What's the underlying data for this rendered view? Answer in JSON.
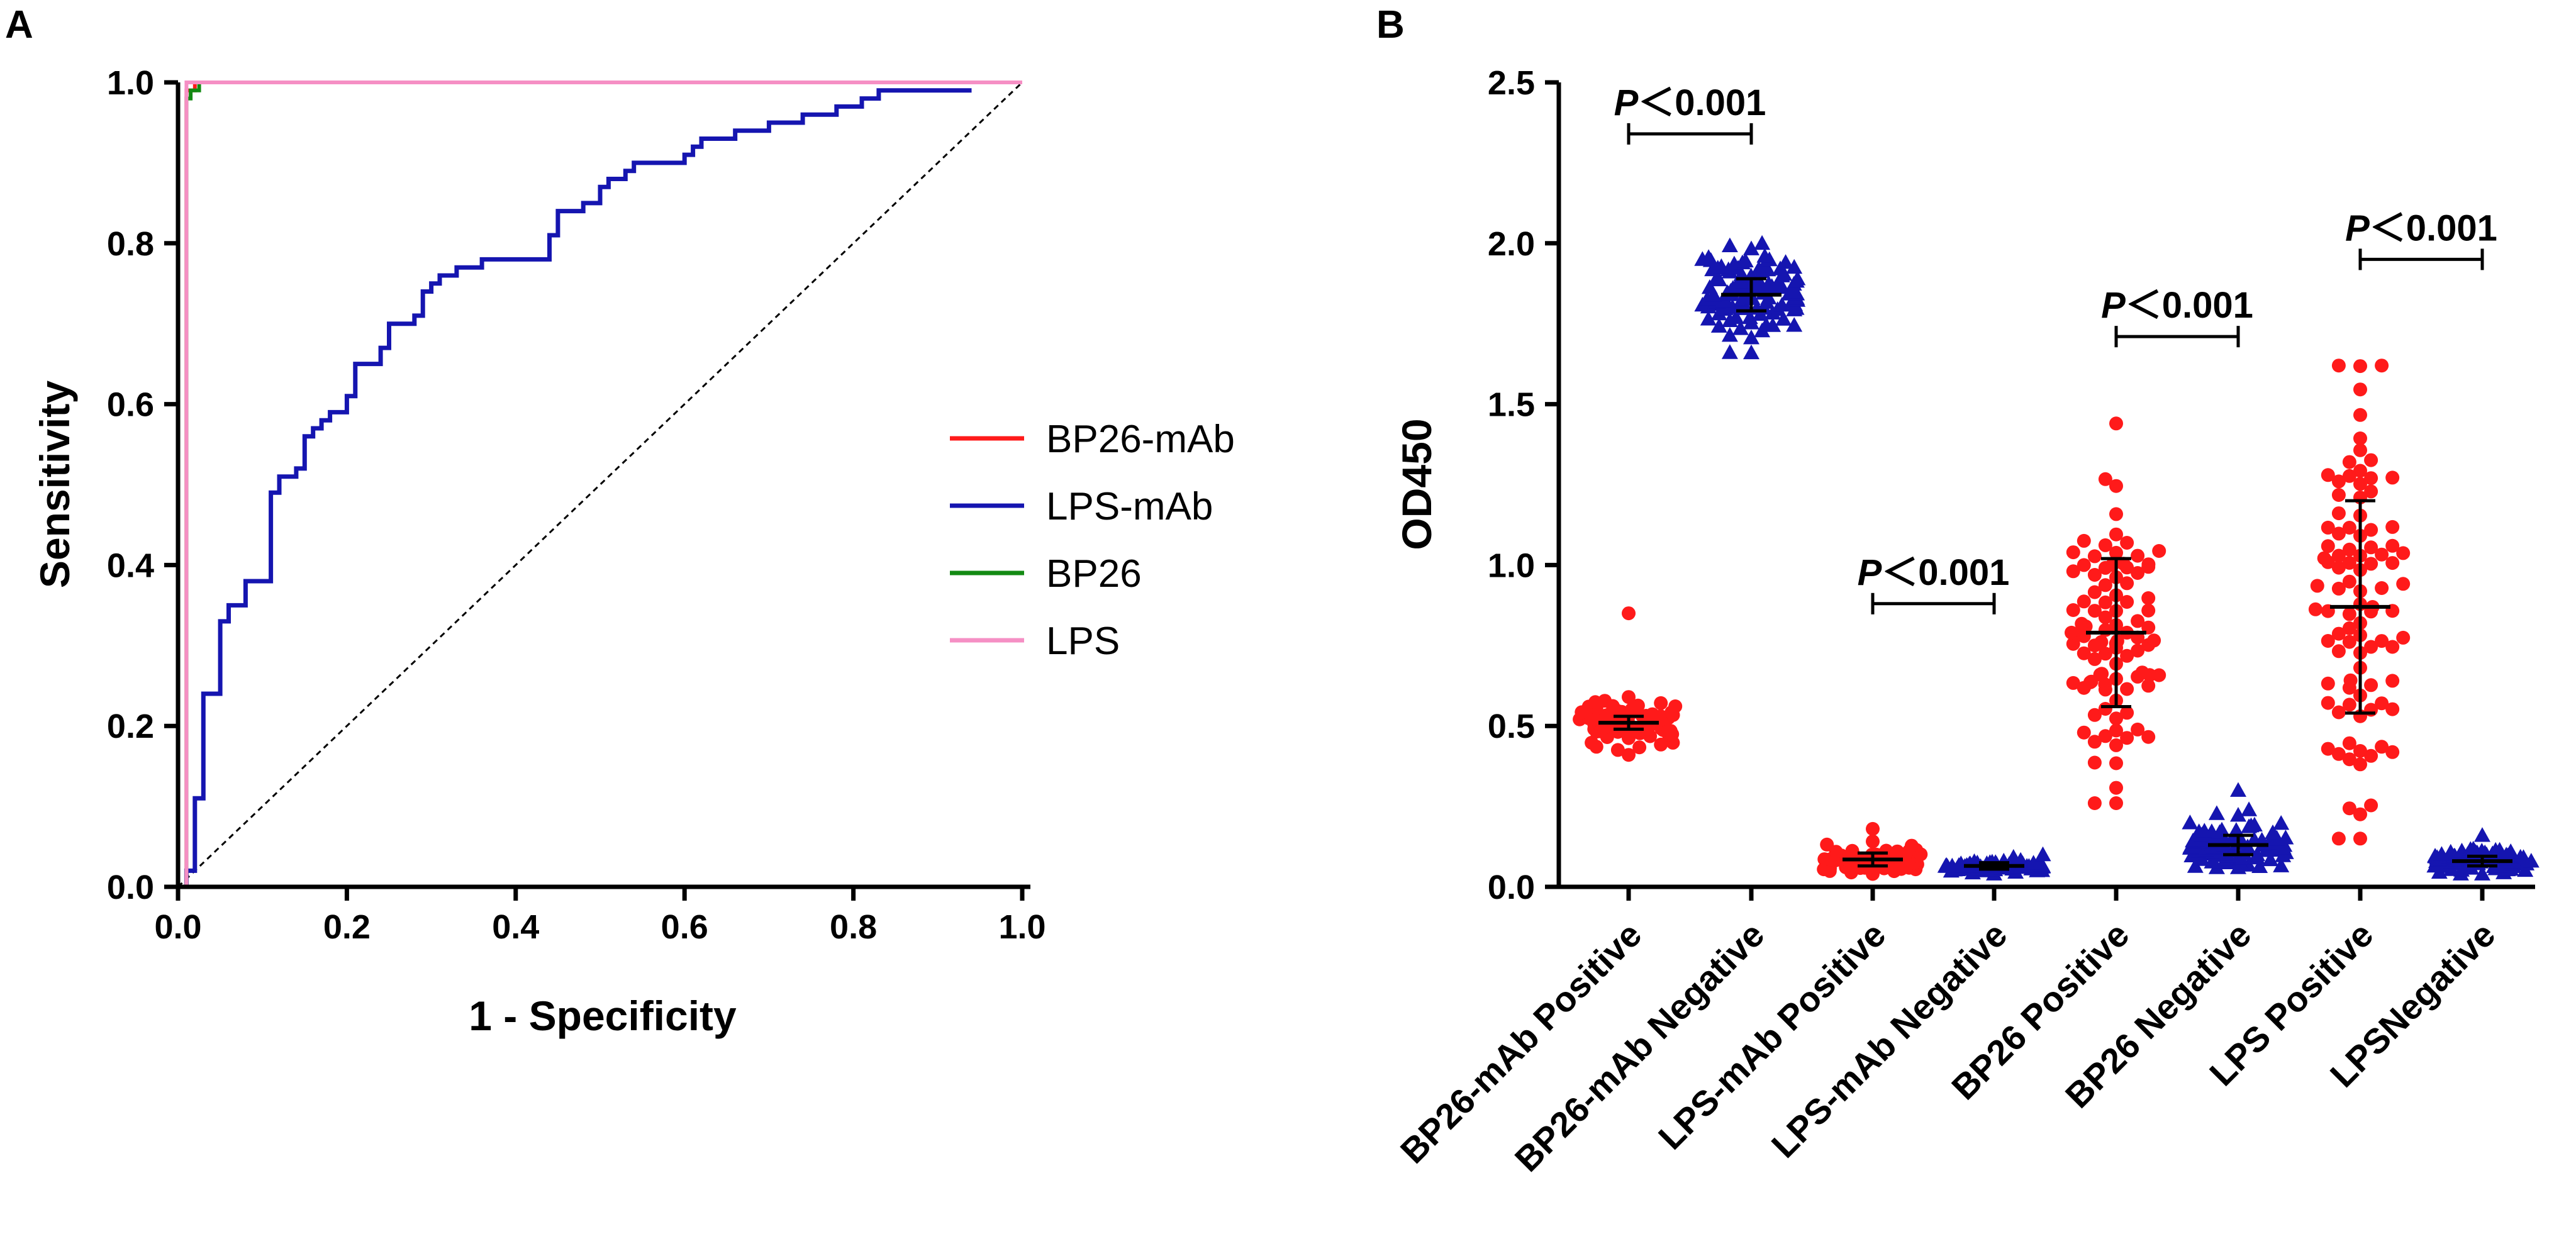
{
  "figure": {
    "panel_a_letter": "A",
    "panel_b_letter": "B"
  },
  "chart_data": [
    {
      "type": "line",
      "panel": "A",
      "title": "",
      "xlabel": "1 - Specificity",
      "ylabel": "Sensitivity",
      "xlim": [
        0,
        1
      ],
      "ylim": [
        0,
        1
      ],
      "xticks": [
        "0.0",
        "0.2",
        "0.4",
        "0.6",
        "0.8",
        "1.0"
      ],
      "yticks": [
        "0.0",
        "0.2",
        "0.4",
        "0.6",
        "0.8",
        "1.0"
      ],
      "legend_position": "right",
      "reference_line": {
        "style": "dashed",
        "color": "#000000",
        "x": [
          0,
          1
        ],
        "y": [
          0,
          1
        ]
      },
      "series": [
        {
          "name": "BP26-mAb",
          "color": "#ff1a1a",
          "x": [
            0.01,
            0.01,
            0.02,
            1.0
          ],
          "y": [
            0.0,
            0.99,
            1.0,
            1.0
          ]
        },
        {
          "name": "LPS-mAb",
          "color": "#1515b0",
          "x": [
            0.01,
            0.01,
            0.02,
            0.02,
            0.03,
            0.03,
            0.045,
            0.05,
            0.05,
            0.06,
            0.06,
            0.08,
            0.08,
            0.11,
            0.11,
            0.12,
            0.12,
            0.14,
            0.15,
            0.16,
            0.17,
            0.17,
            0.18,
            0.19,
            0.2,
            0.21,
            0.21,
            0.23,
            0.24,
            0.25,
            0.25,
            0.28,
            0.29,
            0.29,
            0.3,
            0.31,
            0.32,
            0.33,
            0.35,
            0.36,
            0.37,
            0.38,
            0.42,
            0.44,
            0.44,
            0.45,
            0.45,
            0.47,
            0.48,
            0.49,
            0.5,
            0.51,
            0.52,
            0.53,
            0.54,
            0.56,
            0.57,
            0.58,
            0.6,
            0.61,
            0.62,
            0.63,
            0.66,
            0.67,
            0.7,
            0.72,
            0.74,
            0.77,
            0.78,
            0.8,
            0.81,
            0.82,
            0.83,
            0.85,
            0.86,
            0.94
          ],
          "y": [
            0.0,
            0.02,
            0.1,
            0.11,
            0.23,
            0.24,
            0.24,
            0.25,
            0.33,
            0.35,
            0.35,
            0.36,
            0.38,
            0.38,
            0.49,
            0.5,
            0.51,
            0.52,
            0.56,
            0.57,
            0.58,
            0.58,
            0.59,
            0.59,
            0.61,
            0.64,
            0.65,
            0.65,
            0.67,
            0.68,
            0.7,
            0.71,
            0.73,
            0.74,
            0.75,
            0.76,
            0.76,
            0.77,
            0.77,
            0.78,
            0.78,
            0.78,
            0.78,
            0.79,
            0.81,
            0.83,
            0.84,
            0.84,
            0.85,
            0.85,
            0.87,
            0.88,
            0.88,
            0.89,
            0.9,
            0.9,
            0.9,
            0.9,
            0.91,
            0.92,
            0.93,
            0.93,
            0.94,
            0.94,
            0.95,
            0.95,
            0.96,
            0.96,
            0.97,
            0.97,
            0.98,
            0.98,
            0.99,
            0.99,
            0.99,
            0.99
          ]
        },
        {
          "name": "BP26",
          "color": "#138a13",
          "x": [
            0.01,
            0.01,
            0.015,
            0.02,
            0.025,
            1.0
          ],
          "y": [
            0.0,
            0.98,
            0.99,
            0.99,
            1.0,
            1.0
          ]
        },
        {
          "name": "LPS",
          "color": "#f58fc4",
          "x": [
            0.01,
            0.01,
            1.0
          ],
          "y": [
            0.0,
            1.0,
            1.0
          ]
        }
      ]
    },
    {
      "type": "scatter",
      "panel": "B",
      "title": "",
      "xlabel": "",
      "ylabel": "OD450",
      "ylim": [
        0,
        2.5
      ],
      "yticks": [
        "0.0",
        "0.5",
        "1.0",
        "1.5",
        "2.0",
        "2.5"
      ],
      "categories": [
        "BP26-mAb Positive",
        "BP26-mAb Negative",
        "LPS-mAb Positive",
        "LPS-mAb Negative",
        "BP26 Positive",
        "BP26 Negative",
        "LPS Positive",
        "LPSNegative"
      ],
      "groups": [
        {
          "category": "BP26-mAb Positive",
          "marker": "circle",
          "color": "#ff1a1a",
          "n": 90,
          "mean": 0.51,
          "sd": 0.035,
          "min": 0.41,
          "max": 0.59,
          "outlier": 0.85,
          "error_sd": 0.02
        },
        {
          "category": "BP26-mAb Negative",
          "marker": "triangle",
          "color": "#1515b0",
          "n": 110,
          "mean": 1.84,
          "sd": 0.06,
          "min": 1.66,
          "max": 2.0,
          "error_sd": 0.05
        },
        {
          "category": "LPS-mAb Positive",
          "marker": "circle",
          "color": "#ff1a1a",
          "n": 70,
          "mean": 0.085,
          "sd": 0.02,
          "min": 0.04,
          "max": 0.18,
          "error_sd": 0.02
        },
        {
          "category": "LPS-mAb Negative",
          "marker": "triangle",
          "color": "#1515b0",
          "n": 70,
          "mean": 0.065,
          "sd": 0.01,
          "min": 0.04,
          "max": 0.1,
          "error_sd": 0.01
        },
        {
          "category": "BP26 Positive",
          "marker": "circle",
          "color": "#ff1a1a",
          "n": 95,
          "mean": 0.79,
          "sd": 0.23,
          "min": 0.26,
          "max": 1.44,
          "error_sd": 0.23
        },
        {
          "category": "BP26 Negative",
          "marker": "triangle",
          "color": "#1515b0",
          "n": 95,
          "mean": 0.13,
          "sd": 0.04,
          "min": 0.06,
          "max": 0.3,
          "error_sd": 0.03
        },
        {
          "category": "LPS Positive",
          "marker": "circle",
          "color": "#ff1a1a",
          "n": 95,
          "mean": 0.87,
          "sd": 0.33,
          "min": 0.15,
          "max": 1.62,
          "error_sd": 0.33
        },
        {
          "category": "LPSNegative",
          "marker": "triangle",
          "color": "#1515b0",
          "n": 90,
          "mean": 0.08,
          "sd": 0.02,
          "min": 0.04,
          "max": 0.16,
          "error_sd": 0.015
        }
      ],
      "comparisons": [
        {
          "groups": [
            0,
            1
          ],
          "p_prefix": "P",
          "p_suffix": "＜0.001",
          "bracket_y": 2.34
        },
        {
          "groups": [
            2,
            3
          ],
          "p_prefix": "P",
          "p_suffix": "＜0.001",
          "bracket_y": 0.88
        },
        {
          "groups": [
            4,
            5
          ],
          "p_prefix": "P",
          "p_suffix": "＜0.001",
          "bracket_y": 1.71
        },
        {
          "groups": [
            6,
            7
          ],
          "p_prefix": "P",
          "p_suffix": "＜0.001",
          "bracket_y": 1.95
        }
      ]
    }
  ]
}
